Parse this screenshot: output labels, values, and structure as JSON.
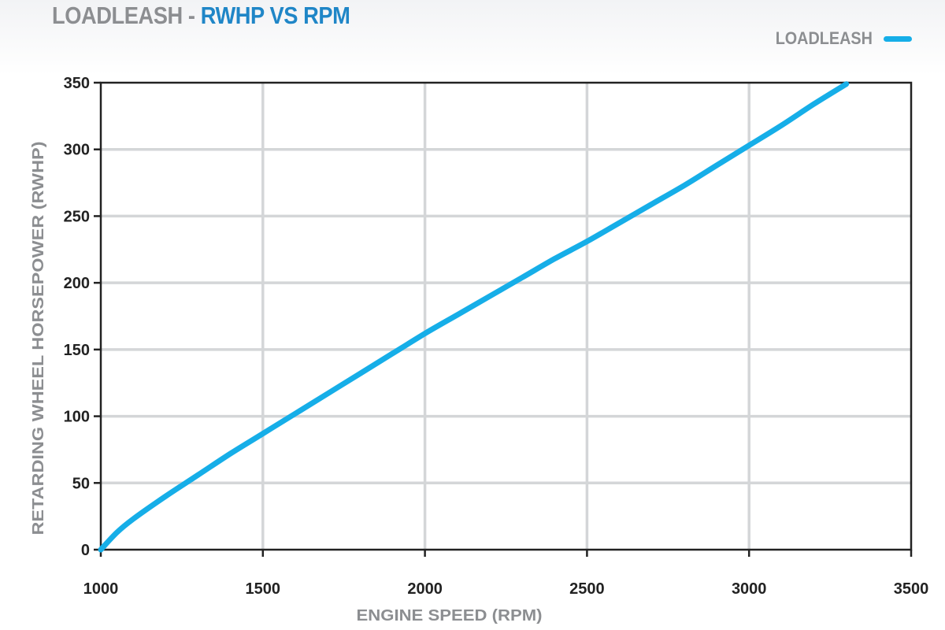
{
  "title": {
    "prefix": "LOADLEASH",
    "separator": " - ",
    "main": "RWHP VS RPM"
  },
  "chart_data": {
    "type": "line",
    "xlabel": "ENGINE SPEED (RPM)",
    "ylabel": "RETARDING WHEEL HORSEPOWER (RWHP)",
    "xlim": [
      1000,
      3500
    ],
    "ylim": [
      0,
      350
    ],
    "xticks": [
      1000,
      1500,
      2000,
      2500,
      3000,
      3500
    ],
    "yticks": [
      0,
      50,
      100,
      150,
      200,
      250,
      300,
      350
    ],
    "grid": true,
    "legend_position": "top-right",
    "series": [
      {
        "name": "LOADLEASH",
        "color": "#16aee8",
        "x": [
          1000,
          1050,
          1100,
          1200,
          1300,
          1400,
          1500,
          1600,
          1700,
          1800,
          1900,
          2000,
          2100,
          2200,
          2300,
          2400,
          2500,
          2600,
          2700,
          2800,
          2900,
          3000,
          3100,
          3200,
          3300
        ],
        "y": [
          0,
          13,
          23,
          40,
          56,
          72,
          87,
          102,
          117,
          132,
          147,
          162,
          176,
          190,
          204,
          218,
          231,
          245,
          259,
          273,
          288,
          303,
          318,
          334,
          349
        ]
      }
    ]
  }
}
